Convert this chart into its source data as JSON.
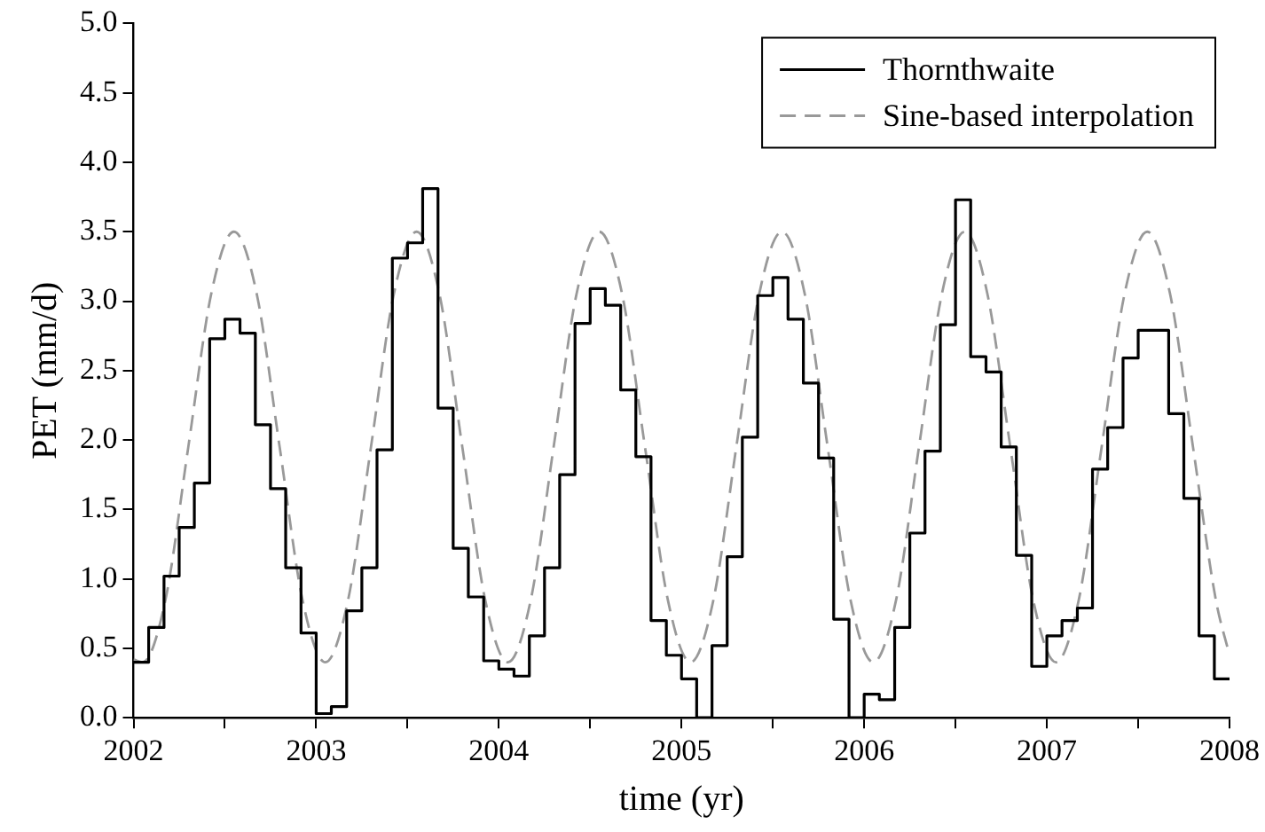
{
  "chart_data": {
    "type": "step",
    "xlabel": "time (yr)",
    "ylabel": "PET (mm/d)",
    "xlim": [
      2002,
      2008
    ],
    "xticks": [
      2002,
      {
        "value": 2002.5,
        "label": null
      },
      2003,
      {
        "value": 2003.5,
        "label": null
      },
      2004,
      {
        "value": 2004.5,
        "label": null
      },
      2005,
      {
        "value": 2005.5,
        "label": null
      },
      2006,
      {
        "value": 2006.5,
        "label": null
      },
      2007,
      {
        "value": 2007.5,
        "label": null
      },
      2008
    ],
    "ylim": [
      0,
      5
    ],
    "yticks": [
      {
        "value": 0,
        "label": "0.0"
      },
      0.5,
      {
        "value": 1,
        "label": "1.0"
      },
      1.5,
      {
        "value": 2,
        "label": "2.0"
      },
      2.5,
      {
        "value": 3,
        "label": "3.0"
      },
      3.5,
      {
        "value": 4,
        "label": "4.0"
      },
      4.5,
      {
        "value": 5,
        "label": "5.0"
      }
    ],
    "grid": false,
    "legend": "top right",
    "marker": "none",
    "series": [
      {
        "name": "Thornthwaite",
        "color": "#000000",
        "line_style": "solid",
        "x": [
          2002,
          2002.083,
          2002.167,
          2002.25,
          2002.333,
          2002.417,
          2002.5,
          2002.583,
          2002.667,
          2002.75,
          2002.833,
          2002.917,
          2003,
          2003.083,
          2003.167,
          2003.25,
          2003.333,
          2003.417,
          2003.5,
          2003.583,
          2003.667,
          2003.75,
          2003.833,
          2003.917,
          2004,
          2004.083,
          2004.167,
          2004.25,
          2004.333,
          2004.417,
          2004.5,
          2004.583,
          2004.667,
          2004.75,
          2004.833,
          2004.917,
          2005,
          2005.083,
          2005.167,
          2005.25,
          2005.333,
          2005.417,
          2005.5,
          2005.583,
          2005.667,
          2005.75,
          2005.833,
          2005.917,
          2006,
          2006.083,
          2006.167,
          2006.25,
          2006.333,
          2006.417,
          2006.5,
          2006.583,
          2006.667,
          2006.75,
          2006.833,
          2006.917,
          2007,
          2007.083,
          2007.167,
          2007.25,
          2007.333,
          2007.417,
          2007.5,
          2007.583,
          2007.667,
          2007.75,
          2007.833,
          2007.917,
          2008
        ],
        "values": [
          0.4,
          0.65,
          1.02,
          1.37,
          1.69,
          2.73,
          2.87,
          2.77,
          2.11,
          1.65,
          1.08,
          0.61,
          0.03,
          0.08,
          0.77,
          1.08,
          1.93,
          3.31,
          3.42,
          3.81,
          2.23,
          1.22,
          0.87,
          0.41,
          0.35,
          0.3,
          0.59,
          1.08,
          1.75,
          2.84,
          3.09,
          2.97,
          2.36,
          1.88,
          0.7,
          0.45,
          0.28,
          0,
          0.52,
          1.16,
          2.02,
          3.04,
          3.17,
          2.87,
          2.41,
          1.87,
          0.71,
          0,
          0.17,
          0.13,
          0.65,
          1.33,
          1.92,
          2.83,
          3.73,
          2.6,
          2.49,
          1.95,
          1.17,
          0.37,
          0.59,
          0.7,
          0.79,
          1.79,
          2.09,
          2.59,
          2.79,
          2.79,
          2.19,
          1.58,
          0.59,
          0.28,
          0.28
        ]
      },
      {
        "name": "Sine-based interpolation",
        "type": "line",
        "color": "#999999",
        "line_style": "dashed",
        "x": [
          2002,
          2002.05,
          2002.175,
          2002.3,
          2002.425,
          2002.55,
          2002.675,
          2002.8,
          2002.925,
          2003.05,
          2003.175,
          2003.3,
          2003.425,
          2003.55,
          2003.675,
          2003.8,
          2003.925,
          2004.05,
          2004.175,
          2004.3,
          2004.425,
          2004.55,
          2004.675,
          2004.8,
          2004.925,
          2005.05,
          2005.175,
          2005.3,
          2005.425,
          2005.55,
          2005.675,
          2005.8,
          2005.925,
          2006.05,
          2006.175,
          2006.3,
          2006.425,
          2006.55,
          2006.675,
          2006.8,
          2006.925,
          2007.05,
          2007.175,
          2007.3,
          2007.425,
          2007.55,
          2007.675,
          2007.8,
          2007.925,
          2008
        ],
        "values": [
          0.42,
          0.4,
          0.85,
          1.95,
          3.05,
          3.5,
          3.05,
          1.95,
          0.85,
          0.4,
          0.85,
          1.95,
          3.05,
          3.5,
          3.05,
          1.95,
          0.85,
          0.4,
          0.85,
          1.95,
          3.05,
          3.5,
          3.05,
          1.95,
          0.85,
          0.4,
          0.85,
          1.95,
          3.05,
          3.5,
          3.05,
          1.95,
          0.85,
          0.4,
          0.85,
          1.95,
          3.05,
          3.5,
          3.05,
          1.95,
          0.85,
          0.4,
          0.85,
          1.95,
          3.05,
          3.5,
          3.05,
          1.95,
          0.85,
          0.45
        ]
      }
    ]
  }
}
